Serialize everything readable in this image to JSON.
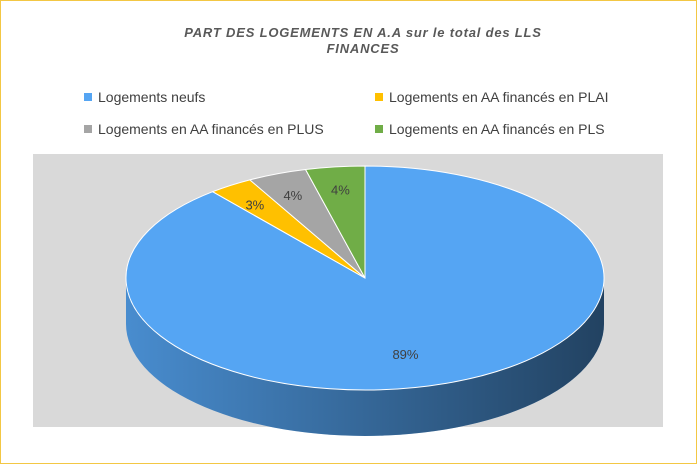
{
  "chart_data": {
    "type": "pie",
    "title": "PART DES LOGEMENTS EN A.A sur le total des LLS FINANCES",
    "categories": [
      "Logements neufs",
      "Logements en AA financés en PLAI",
      "Logements en AA financés en PLUS",
      "Logements en AA financés en PLS"
    ],
    "values": [
      89,
      3,
      4,
      4
    ],
    "value_labels": [
      "89%",
      "3%",
      "4%",
      "4%"
    ],
    "colors": [
      "#55a5f3",
      "#ffc000",
      "#a5a5a5",
      "#70ad47"
    ]
  }
}
